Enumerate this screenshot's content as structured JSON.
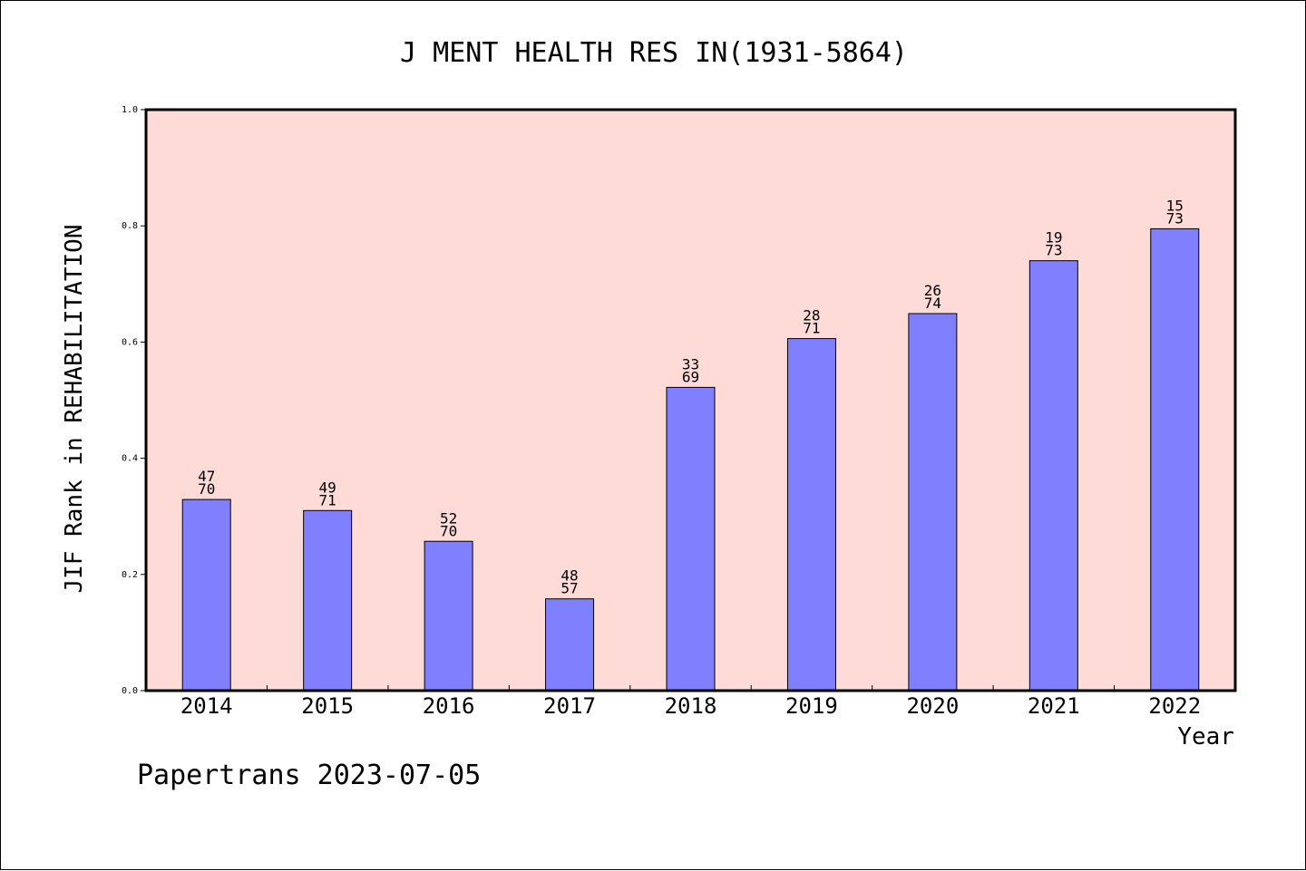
{
  "chart_data": {
    "type": "bar",
    "title": "J MENT HEALTH RES IN(1931-5864)",
    "xlabel": "Year",
    "ylabel": "JIF Rank in REHABILITATION",
    "ylim": [
      0,
      1.0
    ],
    "yticks": [
      "0.0",
      "0.2",
      "0.4",
      "0.6",
      "0.8",
      "1.0"
    ],
    "categories": [
      "2014",
      "2015",
      "2016",
      "2017",
      "2018",
      "2019",
      "2020",
      "2021",
      "2022"
    ],
    "values": [
      0.329,
      0.31,
      0.257,
      0.158,
      0.522,
      0.606,
      0.649,
      0.74,
      0.795
    ],
    "labels": [
      {
        "rank": "47",
        "total": "70"
      },
      {
        "rank": "49",
        "total": "71"
      },
      {
        "rank": "52",
        "total": "70"
      },
      {
        "rank": "48",
        "total": "57"
      },
      {
        "rank": "33",
        "total": "69"
      },
      {
        "rank": "28",
        "total": "71"
      },
      {
        "rank": "26",
        "total": "74"
      },
      {
        "rank": "19",
        "total": "73"
      },
      {
        "rank": "15",
        "total": "73"
      }
    ],
    "grid": false,
    "colors": {
      "bar": "#8080ff",
      "plot_background": "#ffdbd8",
      "axis": "#000000"
    }
  },
  "footer": {
    "text": "Papertrans 2023-07-05"
  }
}
